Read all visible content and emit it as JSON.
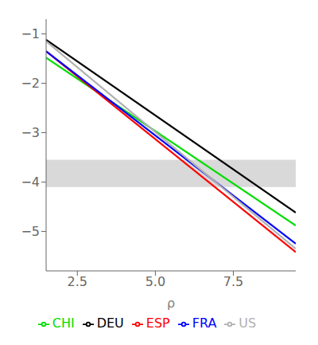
{
  "chart_data": {
    "type": "line",
    "title": "",
    "xlabel": "ρ",
    "x": [
      1.5,
      9.5
    ],
    "series": [
      {
        "name": "CHI",
        "color": "#00dd00",
        "values": [
          -1.48,
          -4.88
        ]
      },
      {
        "name": "DEU",
        "color": "#000000",
        "values": [
          -1.12,
          -4.62
        ]
      },
      {
        "name": "ESP",
        "color": "#ff0000",
        "values": [
          -1.35,
          -5.42
        ]
      },
      {
        "name": "FRA",
        "color": "#0000ff",
        "values": [
          -1.35,
          -5.25
        ]
      },
      {
        "name": "US",
        "color": "#b0b0b0",
        "values": [
          -1.15,
          -5.35
        ]
      }
    ],
    "xlim": [
      1.5,
      9.5
    ],
    "xticks": [
      {
        "value": 2.5,
        "label": "2.5"
      },
      {
        "value": 5.0,
        "label": "5.0"
      },
      {
        "value": 7.5,
        "label": "7.5"
      }
    ],
    "ylim": [
      -5.8,
      -0.7
    ],
    "yticks": [
      {
        "value": -1,
        "label": "−1"
      },
      {
        "value": -2,
        "label": "−2"
      },
      {
        "value": -3,
        "label": "−3"
      },
      {
        "value": -4,
        "label": "−4"
      },
      {
        "value": -5,
        "label": "−5"
      }
    ],
    "shaded_band": [
      -4.1,
      -3.55
    ],
    "shaded_color": "#d9d9d9",
    "grid": false,
    "legend": "bottom"
  }
}
